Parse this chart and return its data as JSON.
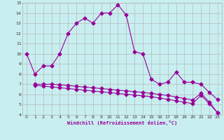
{
  "xlabel": "Windchill (Refroidissement éolien,°C)",
  "bg_color": "#c8eef0",
  "grid_color": "#b0b0b0",
  "line_color": "#990099",
  "ylim": [
    4,
    15
  ],
  "xlim": [
    -0.5,
    23.5
  ],
  "yticks": [
    4,
    5,
    6,
    7,
    8,
    9,
    10,
    11,
    12,
    13,
    14,
    15
  ],
  "xticks": [
    0,
    1,
    2,
    3,
    4,
    5,
    6,
    7,
    8,
    9,
    10,
    11,
    12,
    13,
    14,
    15,
    16,
    17,
    18,
    19,
    20,
    21,
    22,
    23
  ],
  "line1_x": [
    0,
    1,
    2,
    3,
    4,
    5,
    6,
    7,
    8,
    9,
    10,
    11,
    12,
    13,
    14,
    15,
    16,
    17,
    18,
    19,
    20,
    21,
    22,
    23
  ],
  "line1_y": [
    10,
    8,
    8.8,
    8.8,
    10,
    12,
    13.0,
    13.5,
    13.0,
    14.0,
    14.0,
    14.8,
    13.8,
    10.2,
    10.0,
    7.5,
    7.0,
    7.2,
    8.2,
    7.2,
    7.2,
    7.0,
    6.2,
    5.5
  ],
  "line2_x": [
    1,
    2,
    3,
    4,
    5,
    6,
    7,
    8,
    9,
    10,
    11,
    12,
    13,
    14,
    15,
    16,
    17,
    18,
    19,
    20,
    21,
    22,
    23
  ],
  "line2_y": [
    7.0,
    7.0,
    7.0,
    6.95,
    6.88,
    6.8,
    6.72,
    6.65,
    6.58,
    6.5,
    6.42,
    6.35,
    6.27,
    6.2,
    6.1,
    6.0,
    5.9,
    5.75,
    5.6,
    5.45,
    6.1,
    5.25,
    4.2
  ],
  "line3_x": [
    1,
    2,
    3,
    4,
    5,
    6,
    7,
    8,
    9,
    10,
    11,
    12,
    13,
    14,
    15,
    16,
    17,
    18,
    19,
    20,
    21,
    22,
    23
  ],
  "line3_y": [
    6.9,
    6.82,
    6.74,
    6.66,
    6.58,
    6.5,
    6.42,
    6.34,
    6.26,
    6.18,
    6.1,
    6.02,
    5.94,
    5.86,
    5.78,
    5.65,
    5.52,
    5.38,
    5.24,
    5.1,
    5.9,
    5.1,
    4.2
  ]
}
